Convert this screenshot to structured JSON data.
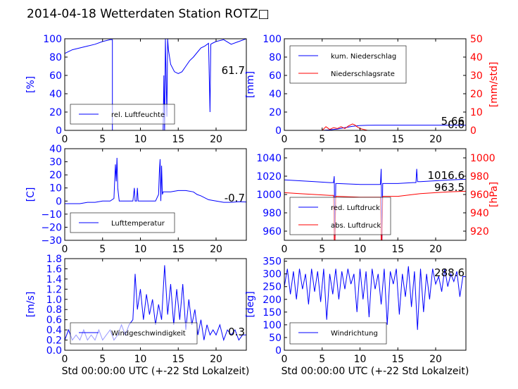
{
  "title": "2014-04-18 Wetterdaten Station ROTZ□",
  "colors": {
    "blue": "#0000ff",
    "red": "#ff0000",
    "axis": "#000000"
  },
  "chart_data": [
    {
      "type": "line",
      "id": "humidity",
      "ylabel": "[%]",
      "xlim": [
        0,
        24
      ],
      "ylim": [
        0,
        100
      ],
      "yticks": [
        "0",
        "20",
        "40",
        "60",
        "80",
        "100"
      ],
      "xticks": [
        "0",
        "5",
        "10",
        "15",
        "20"
      ],
      "xlabel": "",
      "legend": [
        "rel. Luftfeuchte"
      ],
      "legend_position": "lower-left",
      "current_value": "61.7",
      "series": [
        {
          "name": "rel. Luftfeuchte",
          "color": "#0000ff",
          "x": [
            0,
            0.5,
            1,
            2,
            3,
            4,
            5,
            6,
            6.3,
            6.3,
            9,
            13,
            13.1,
            13.2,
            13.3,
            13.5,
            13.6,
            13.7,
            14,
            14.5,
            15,
            15.5,
            16,
            16.5,
            17,
            17.5,
            18,
            18.5,
            19,
            19.2,
            19.3,
            19.5,
            20,
            21,
            22,
            23,
            24
          ],
          "y": [
            84,
            86,
            88,
            90,
            92,
            94,
            97,
            99,
            99,
            0,
            0,
            0,
            60,
            0,
            100,
            15,
            100,
            88,
            72,
            64,
            62,
            64,
            70,
            76,
            80,
            85,
            90,
            92,
            95,
            20,
            94,
            95,
            97,
            99,
            94,
            97,
            100
          ]
        }
      ]
    },
    {
      "type": "line",
      "id": "precipitation",
      "ylabel": "[mm]",
      "y2label": "[mm/std]",
      "xlim": [
        0,
        24
      ],
      "ylim": [
        0,
        100
      ],
      "y2lim": [
        0,
        50
      ],
      "yticks": [
        "0",
        "20",
        "40",
        "60",
        "80",
        "100"
      ],
      "y2ticks": [
        "0",
        "10",
        "20",
        "30",
        "40",
        "50"
      ],
      "xticks": [
        "0",
        "5",
        "10",
        "15",
        "20"
      ],
      "xlabel": "",
      "legend": [
        "kum. Niederschlag",
        "Niederschlagsrate"
      ],
      "legend_position": "upper-left",
      "current_value": "5.66",
      "current_value2": "0.0",
      "series": [
        {
          "name": "kum. Niederschlag",
          "color": "#0000ff",
          "axis": "left",
          "x": [
            0,
            5,
            6,
            7,
            8,
            9,
            10,
            11,
            12,
            24
          ],
          "y": [
            0,
            0,
            0.5,
            1.5,
            3,
            4.5,
            5.3,
            5.6,
            5.66,
            5.66
          ]
        },
        {
          "name": "Niederschlagsrate",
          "color": "#ff0000",
          "axis": "right",
          "x": [
            0,
            5,
            5.5,
            6,
            6.5,
            7,
            7.5,
            8,
            8.5,
            9,
            9.3,
            9.6,
            10,
            10.5,
            11,
            24
          ],
          "y": [
            0,
            0,
            2,
            0.5,
            1.5,
            1,
            2,
            1,
            2.5,
            3.5,
            3,
            2,
            1,
            0.5,
            0,
            0
          ]
        }
      ]
    },
    {
      "type": "line",
      "id": "temperature",
      "ylabel": "[C]",
      "xlim": [
        0,
        24
      ],
      "ylim": [
        -30,
        40
      ],
      "yticks": [
        "−30",
        "−20",
        "−10",
        "0",
        "10",
        "20",
        "30",
        "40"
      ],
      "xticks": [
        "0",
        "5",
        "10",
        "15",
        "20"
      ],
      "xlabel": "",
      "legend": [
        "Lufttemperatur"
      ],
      "legend_position": "lower-left",
      "current_value": "-0.7",
      "series": [
        {
          "name": "Lufttemperatur",
          "color": "#0000ff",
          "x": [
            0,
            1,
            2,
            3,
            4,
            5,
            6,
            6.5,
            6.6,
            6.7,
            6.8,
            6.9,
            7.0,
            7.2,
            7.3,
            8,
            9,
            9.2,
            9.3,
            9.5,
            9.6,
            9.7,
            10,
            12,
            12.4,
            12.5,
            12.6,
            12.7,
            12.8,
            12.9,
            13,
            14,
            15,
            16,
            17,
            17.5,
            18,
            19,
            20,
            21,
            22,
            23,
            24
          ],
          "y": [
            -2,
            -2,
            -2,
            -1,
            -1,
            0,
            0,
            2,
            15,
            28,
            15,
            33,
            10,
            0,
            0,
            0,
            0,
            10,
            0,
            0,
            10,
            0,
            0,
            0,
            5,
            22,
            32,
            0,
            27,
            5,
            7,
            7,
            8,
            8,
            7,
            5,
            4,
            1,
            0,
            -1,
            -1,
            -0.5,
            -0.7
          ]
        }
      ]
    },
    {
      "type": "line",
      "id": "pressure",
      "ylabel": "",
      "y2label": "[hPa]",
      "xlim": [
        0,
        24
      ],
      "ylim": [
        950,
        1050
      ],
      "y2lim": [
        910,
        1010
      ],
      "yticks": [
        "960",
        "980",
        "1000",
        "1020",
        "1040"
      ],
      "y2ticks": [
        "920",
        "940",
        "960",
        "980",
        "1000"
      ],
      "xticks": [
        "0",
        "5",
        "10",
        "15",
        "20"
      ],
      "xlabel": "",
      "legend": [
        "red. Luftdruck",
        "abs. Luftdruck"
      ],
      "legend_position": "lower-left",
      "current_value": "1016.6",
      "current_value2": "963.5",
      "series": [
        {
          "name": "red. Luftdruck",
          "color": "#0000ff",
          "axis": "left",
          "x": [
            0,
            2,
            4,
            6,
            6.5,
            6.6,
            6.7,
            6.8,
            7,
            10,
            12,
            12.7,
            12.8,
            12.9,
            13.0,
            13.2,
            15,
            17,
            17.4,
            17.5,
            17.6,
            18,
            20,
            22,
            24
          ],
          "y": [
            1016,
            1015,
            1014,
            1013,
            1013,
            1020,
            950,
            1012,
            1012,
            1011,
            1011,
            1011,
            1028,
            950,
            1012,
            1012,
            1012,
            1013,
            1013,
            1028,
            1014,
            1014,
            1015,
            1016,
            1016.6
          ]
        },
        {
          "name": "abs. Luftdruck",
          "color": "#ff0000",
          "axis": "right",
          "x": [
            0,
            2,
            4,
            6,
            6.5,
            6.6,
            6.7,
            6.8,
            7,
            10,
            12,
            12.7,
            12.8,
            12.9,
            13.0,
            13.2,
            15,
            17,
            18,
            20,
            22,
            24
          ],
          "y": [
            962,
            961,
            960,
            959,
            959,
            910,
            910,
            958,
            958,
            957,
            957,
            957,
            910,
            910,
            958,
            958,
            958,
            960,
            961,
            962,
            963,
            963.5
          ]
        }
      ]
    },
    {
      "type": "line",
      "id": "windspeed",
      "ylabel": "[m/s]",
      "xlim": [
        0,
        24
      ],
      "ylim": [
        0,
        1.8
      ],
      "yticks": [
        "0.0",
        "0.2",
        "0.4",
        "0.6",
        "0.8",
        "1.0",
        "1.2",
        "1.4",
        "1.6",
        "1.8"
      ],
      "xticks": [
        "0",
        "5",
        "10",
        "15",
        "20"
      ],
      "xlabel": "Std 00:00:00 UTC (+-22 Std Lokalzeit)",
      "legend": [
        "Windgeschwindigkeit"
      ],
      "legend_position": "lower-left",
      "current_value": "0.3",
      "series": [
        {
          "name": "Windgeschwindigkeit",
          "color": "#0000ff",
          "x": [
            0,
            0.5,
            1,
            1.5,
            2,
            2.5,
            3,
            3.5,
            4,
            4.5,
            5,
            5.5,
            6,
            6.5,
            7,
            7.5,
            8,
            8.5,
            9,
            9.3,
            9.6,
            10,
            10.4,
            10.8,
            11.2,
            11.6,
            12,
            12.4,
            12.8,
            13.2,
            13.6,
            14,
            14.4,
            14.8,
            15.2,
            15.6,
            16,
            16.4,
            16.8,
            17.2,
            17.6,
            18,
            18.4,
            18.8,
            19.2,
            19.6,
            20,
            20.5,
            21,
            21.5,
            22,
            22.5,
            23,
            23.5,
            24
          ],
          "y": [
            0.2,
            0.4,
            0.2,
            0.3,
            0.2,
            0.4,
            0.2,
            0.3,
            0.2,
            0.4,
            0.2,
            0.3,
            0.4,
            0.2,
            0.3,
            0.5,
            0.3,
            0.5,
            0.6,
            1.5,
            0.8,
            1.2,
            0.6,
            1.1,
            0.7,
            1.0,
            0.5,
            0.9,
            0.6,
            1.67,
            0.7,
            1.3,
            0.5,
            1.2,
            0.6,
            1.3,
            0.4,
            1.0,
            0.5,
            0.8,
            0.3,
            0.6,
            0.2,
            0.5,
            0.3,
            0.4,
            0.3,
            0.5,
            0.2,
            0.4,
            0.3,
            0.4,
            0.2,
            0.3,
            0.3
          ]
        }
      ]
    },
    {
      "type": "line",
      "id": "winddirection",
      "ylabel": "[deg]",
      "xlim": [
        0,
        24
      ],
      "ylim": [
        0,
        360
      ],
      "yticks": [
        "0",
        "50",
        "100",
        "150",
        "200",
        "250",
        "300",
        "350"
      ],
      "xticks": [
        "0",
        "5",
        "10",
        "15",
        "20"
      ],
      "xlabel": "Std 00:00:00 UTC (+-22 Std Lokalzeit)",
      "legend": [
        "Windrichtung"
      ],
      "legend_position": "lower-left",
      "current_value": "288.6",
      "series": [
        {
          "name": "Windrichtung",
          "color": "#0000ff",
          "x": [
            0,
            0.4,
            0.8,
            1.2,
            1.6,
            2,
            2.4,
            2.8,
            3.2,
            3.6,
            4,
            4.4,
            4.8,
            5.2,
            5.6,
            6,
            6.4,
            6.8,
            7.2,
            7.6,
            8,
            8.4,
            8.8,
            9.2,
            9.6,
            10,
            10.4,
            10.8,
            11.2,
            11.6,
            12,
            12.4,
            12.8,
            13.2,
            13.6,
            14,
            14.4,
            14.8,
            15.2,
            15.6,
            16,
            16.4,
            16.8,
            17.2,
            17.6,
            18,
            18.4,
            18.8,
            19.2,
            19.6,
            20,
            20.4,
            20.8,
            21.2,
            21.6,
            22,
            22.4,
            22.8,
            23.2,
            23.6,
            24
          ],
          "y": [
            250,
            320,
            220,
            310,
            200,
            320,
            240,
            300,
            180,
            320,
            230,
            310,
            190,
            320,
            120,
            300,
            220,
            320,
            200,
            310,
            240,
            320,
            260,
            300,
            150,
            320,
            200,
            310,
            130,
            320,
            240,
            300,
            180,
            320,
            100,
            310,
            260,
            320,
            140,
            300,
            210,
            330,
            170,
            310,
            80,
            320,
            150,
            300,
            200,
            320,
            260,
            290,
            230,
            320,
            250,
            300,
            270,
            310,
            210,
            290,
            288.6
          ]
        }
      ]
    }
  ]
}
